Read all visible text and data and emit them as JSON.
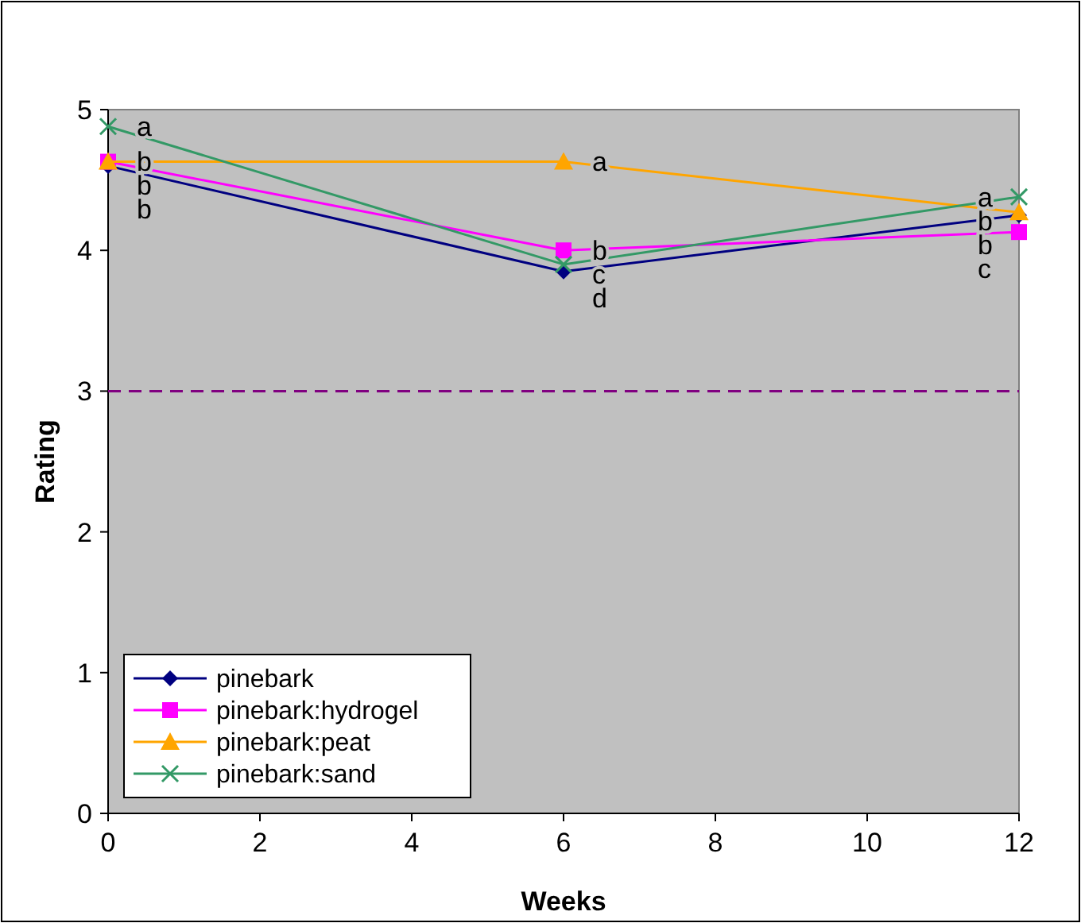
{
  "chart_data": {
    "type": "line",
    "xlabel": "Weeks",
    "ylabel": "Rating",
    "x": [
      0,
      6,
      12
    ],
    "series": [
      {
        "name": "pinebark",
        "color": "#000080",
        "marker": "diamond",
        "values": [
          4.6,
          3.85,
          4.25
        ]
      },
      {
        "name": "pinebark:hydrogel",
        "color": "#ff00ff",
        "marker": "square",
        "values": [
          4.63,
          4.0,
          4.13
        ]
      },
      {
        "name": "pinebark:peat",
        "color": "#ffa500",
        "marker": "triangle",
        "values": [
          4.63,
          4.63,
          4.27
        ]
      },
      {
        "name": "pinebark:sand",
        "color": "#339966",
        "marker": "cross",
        "values": [
          4.88,
          3.9,
          4.38
        ]
      }
    ],
    "xlim": [
      0,
      12
    ],
    "xticks": [
      0,
      2,
      4,
      6,
      8,
      10,
      12
    ],
    "ylim": [
      0,
      5
    ],
    "yticks": [
      0,
      1,
      2,
      3,
      4,
      5
    ],
    "grid": false,
    "legend": "bottom left",
    "ref_lines": [
      {
        "axis": "y",
        "value": 3,
        "color": "#800080",
        "line_style": "dashed"
      }
    ],
    "annotations": [
      {
        "text": "a",
        "x": 0,
        "y": 4.88
      },
      {
        "text": "b",
        "x": 0,
        "y": 4.63
      },
      {
        "text": "b",
        "x": 0,
        "y": 4.63
      },
      {
        "text": "b",
        "x": 0,
        "y": 4.6
      },
      {
        "text": "a",
        "x": 6,
        "y": 4.63
      },
      {
        "text": "b",
        "x": 6,
        "y": 4.0
      },
      {
        "text": "c",
        "x": 6,
        "y": 3.9
      },
      {
        "text": "d",
        "x": 6,
        "y": 3.85
      },
      {
        "text": "a",
        "x": 12,
        "y": 4.38
      },
      {
        "text": "b",
        "x": 12,
        "y": 4.27
      },
      {
        "text": "b",
        "x": 12,
        "y": 4.25
      },
      {
        "text": "c",
        "x": 12,
        "y": 4.13
      }
    ]
  }
}
